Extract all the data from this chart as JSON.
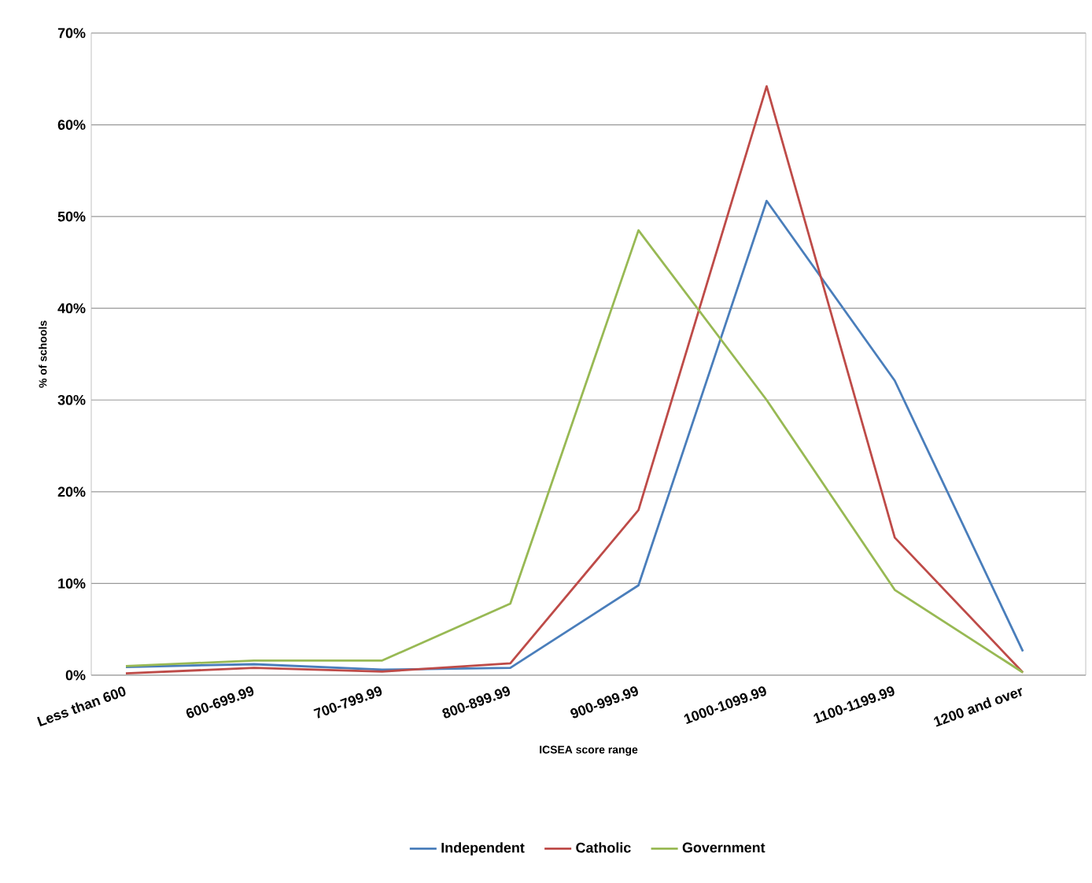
{
  "chart_data": {
    "type": "line",
    "xlabel": "ICSEA score range",
    "ylabel": "% of schools",
    "categories": [
      "Less than 600",
      "600-699.99",
      "700-799.99",
      "800-899.99",
      "900-999.99",
      "1000-1099.99",
      "1100-1199.99",
      "1200 and over"
    ],
    "series": [
      {
        "name": "Independent",
        "color": "#4a7ebb",
        "values": [
          0.9,
          1.2,
          0.6,
          0.8,
          9.8,
          51.7,
          32.1,
          2.6
        ]
      },
      {
        "name": "Catholic",
        "color": "#be4b48",
        "values": [
          0.2,
          0.8,
          0.4,
          1.3,
          18,
          64.2,
          15,
          0.3
        ]
      },
      {
        "name": "Government",
        "color": "#98b954",
        "values": [
          1.0,
          1.6,
          1.6,
          7.8,
          48.5,
          30,
          9.3,
          0.3
        ]
      }
    ],
    "ylim": [
      0,
      70
    ],
    "yticks": [
      {
        "value": 0,
        "label": "0%"
      },
      {
        "value": 10,
        "label": "10%"
      },
      {
        "value": 20,
        "label": "20%"
      },
      {
        "value": 30,
        "label": "30%"
      },
      {
        "value": 40,
        "label": "40%"
      },
      {
        "value": 50,
        "label": "50%"
      },
      {
        "value": 60,
        "label": "60%"
      },
      {
        "value": 70,
        "label": "70%"
      }
    ],
    "grid": "y",
    "legend": "bottom",
    "marker": "none",
    "line_style": "solid"
  }
}
